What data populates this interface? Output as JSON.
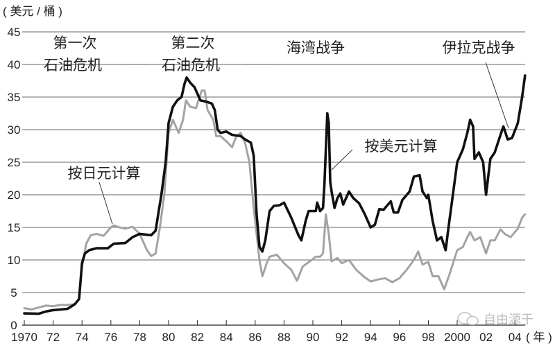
{
  "chart_data": {
    "type": "line",
    "ylabel": "( 美元 / 桶 )",
    "xlabel": "( 年 )",
    "ylim": [
      0,
      45
    ],
    "xlim": [
      1970,
      2004.8
    ],
    "yticks": [
      "0",
      "5",
      "10",
      "15",
      "20",
      "25",
      "30",
      "35",
      "40",
      "45"
    ],
    "xticks": [
      {
        "year": 1970,
        "label": "1970"
      },
      {
        "year": 1972,
        "label": "72"
      },
      {
        "year": 1974,
        "label": "74"
      },
      {
        "year": 1976,
        "label": "76"
      },
      {
        "year": 1978,
        "label": "78"
      },
      {
        "year": 1980,
        "label": "80"
      },
      {
        "year": 1982,
        "label": "82"
      },
      {
        "year": 1984,
        "label": "84"
      },
      {
        "year": 1986,
        "label": "86"
      },
      {
        "year": 1988,
        "label": "88"
      },
      {
        "year": 1990,
        "label": "90"
      },
      {
        "year": 1992,
        "label": "92"
      },
      {
        "year": 1994,
        "label": "94"
      },
      {
        "year": 1996,
        "label": "96"
      },
      {
        "year": 1998,
        "label": "98"
      },
      {
        "year": 2000,
        "label": "2000"
      },
      {
        "year": 2002,
        "label": "02"
      },
      {
        "year": 2004,
        "label": "04"
      }
    ],
    "grid": true,
    "series": [
      {
        "name": "按美元计算",
        "color": "#111111",
        "points": [
          [
            1970,
            1.8
          ],
          [
            1971,
            1.75
          ],
          [
            1971.5,
            2.1
          ],
          [
            1972,
            2.3
          ],
          [
            1973,
            2.5
          ],
          [
            1973.5,
            3.2
          ],
          [
            1973.8,
            4
          ],
          [
            1974,
            9.5
          ],
          [
            1974.2,
            11
          ],
          [
            1974.5,
            11.5
          ],
          [
            1975,
            11.8
          ],
          [
            1975.8,
            11.8
          ],
          [
            1976.2,
            12.5
          ],
          [
            1977,
            12.6
          ],
          [
            1977.5,
            13.5
          ],
          [
            1978,
            14
          ],
          [
            1978.8,
            13.8
          ],
          [
            1979.1,
            14.5
          ],
          [
            1979.5,
            20
          ],
          [
            1979.8,
            25
          ],
          [
            1980,
            31
          ],
          [
            1980.3,
            33.5
          ],
          [
            1980.6,
            34.5
          ],
          [
            1980.9,
            35
          ],
          [
            1981.1,
            37
          ],
          [
            1981.25,
            38
          ],
          [
            1981.5,
            37.2
          ],
          [
            1981.8,
            36.5
          ],
          [
            1982.2,
            34.5
          ],
          [
            1982.6,
            34.3
          ],
          [
            1983,
            34
          ],
          [
            1983.2,
            33
          ],
          [
            1983.4,
            30
          ],
          [
            1983.6,
            29.5
          ],
          [
            1984,
            29.7
          ],
          [
            1984.4,
            29.2
          ],
          [
            1985,
            29
          ],
          [
            1985.3,
            28.5
          ],
          [
            1985.7,
            28
          ],
          [
            1985.9,
            26
          ],
          [
            1986.1,
            17
          ],
          [
            1986.3,
            12
          ],
          [
            1986.5,
            11.3
          ],
          [
            1986.7,
            13
          ],
          [
            1987,
            17.5
          ],
          [
            1987.3,
            18.3
          ],
          [
            1987.7,
            18.4
          ],
          [
            1988,
            18.8
          ],
          [
            1988.5,
            16.5
          ],
          [
            1989,
            13.8
          ],
          [
            1989.2,
            13
          ],
          [
            1989.5,
            16
          ],
          [
            1989.7,
            17.5
          ],
          [
            1990.2,
            17.5
          ],
          [
            1990.3,
            18.8
          ],
          [
            1990.5,
            17.5
          ],
          [
            1990.7,
            18
          ],
          [
            1990.8,
            21.5
          ],
          [
            1990.9,
            27
          ],
          [
            1991,
            32.5
          ],
          [
            1991.1,
            31
          ],
          [
            1991.2,
            22
          ],
          [
            1991.3,
            20.5
          ],
          [
            1991.5,
            18
          ],
          [
            1991.7,
            19.5
          ],
          [
            1991.9,
            20.2
          ],
          [
            1992.1,
            18.5
          ],
          [
            1992.5,
            20.5
          ],
          [
            1992.8,
            19.5
          ],
          [
            1993.2,
            18.7
          ],
          [
            1993.6,
            17
          ],
          [
            1994,
            15
          ],
          [
            1994.3,
            15.4
          ],
          [
            1994.6,
            17.8
          ],
          [
            1994.9,
            17.7
          ],
          [
            1995.2,
            18.5
          ],
          [
            1995.4,
            19
          ],
          [
            1995.6,
            17.3
          ],
          [
            1995.9,
            17.3
          ],
          [
            1996.2,
            19.2
          ],
          [
            1996.7,
            20.5
          ],
          [
            1997,
            22.8
          ],
          [
            1997.4,
            23
          ],
          [
            1997.6,
            20.5
          ],
          [
            1997.9,
            19.5
          ],
          [
            1998,
            20
          ],
          [
            1998.3,
            16
          ],
          [
            1998.6,
            13
          ],
          [
            1998.9,
            13.5
          ],
          [
            1999.2,
            11.5
          ],
          [
            1999.4,
            15
          ],
          [
            1999.7,
            20
          ],
          [
            2000,
            25
          ],
          [
            2000.4,
            27
          ],
          [
            2000.7,
            29.5
          ],
          [
            2000.9,
            31.5
          ],
          [
            2001.1,
            30.5
          ],
          [
            2001.2,
            25.5
          ],
          [
            2001.5,
            26.5
          ],
          [
            2001.8,
            25
          ],
          [
            2002,
            20
          ],
          [
            2002.3,
            25.5
          ],
          [
            2002.6,
            26.5
          ],
          [
            2002.9,
            28.5
          ],
          [
            2003.2,
            30.5
          ],
          [
            2003.5,
            28.5
          ],
          [
            2003.8,
            28.7
          ],
          [
            2004.2,
            31
          ],
          [
            2004.5,
            35
          ],
          [
            2004.7,
            38.3
          ]
        ]
      },
      {
        "name": "按日元计算",
        "color": "#a3a3a3",
        "points": [
          [
            1970,
            2.6
          ],
          [
            1970.5,
            2.4
          ],
          [
            1971,
            2.7
          ],
          [
            1971.5,
            3
          ],
          [
            1972,
            2.9
          ],
          [
            1972.5,
            3.1
          ],
          [
            1973,
            3.1
          ],
          [
            1973.5,
            3.2
          ],
          [
            1973.8,
            4
          ],
          [
            1974,
            9
          ],
          [
            1974.3,
            12.5
          ],
          [
            1974.6,
            13.8
          ],
          [
            1975,
            14
          ],
          [
            1975.5,
            13.7
          ],
          [
            1976,
            15
          ],
          [
            1976.2,
            15.3
          ],
          [
            1976.6,
            15
          ],
          [
            1977,
            14.8
          ],
          [
            1977.5,
            15.1
          ],
          [
            1978,
            14
          ],
          [
            1978.5,
            11.5
          ],
          [
            1978.8,
            10.6
          ],
          [
            1979.1,
            11
          ],
          [
            1979.4,
            15
          ],
          [
            1979.7,
            20
          ],
          [
            1980,
            29.5
          ],
          [
            1980.3,
            31.5
          ],
          [
            1980.7,
            29.5
          ],
          [
            1981,
            31.5
          ],
          [
            1981.2,
            34.5
          ],
          [
            1981.5,
            33.5
          ],
          [
            1981.9,
            33.3
          ],
          [
            1982.3,
            36
          ],
          [
            1982.5,
            36
          ],
          [
            1982.7,
            33
          ],
          [
            1983.1,
            31.5
          ],
          [
            1983.3,
            29
          ],
          [
            1983.6,
            29
          ],
          [
            1984.1,
            28
          ],
          [
            1984.4,
            27.3
          ],
          [
            1984.7,
            29
          ],
          [
            1985,
            29.5
          ],
          [
            1985.3,
            28
          ],
          [
            1985.6,
            25
          ],
          [
            1985.9,
            18
          ],
          [
            1986.3,
            10
          ],
          [
            1986.5,
            7.5
          ],
          [
            1986.8,
            9.5
          ],
          [
            1987,
            10.5
          ],
          [
            1987.5,
            10.8
          ],
          [
            1988,
            9.5
          ],
          [
            1988.5,
            8.5
          ],
          [
            1988.9,
            6.8
          ],
          [
            1989.3,
            9
          ],
          [
            1989.8,
            9.8
          ],
          [
            1990.2,
            10.5
          ],
          [
            1990.5,
            10.5
          ],
          [
            1990.7,
            11
          ],
          [
            1990.9,
            17
          ],
          [
            1991.1,
            14
          ],
          [
            1991.3,
            9.8
          ],
          [
            1991.7,
            10.3
          ],
          [
            1992,
            9.5
          ],
          [
            1992.5,
            10
          ],
          [
            1993,
            8.5
          ],
          [
            1993.5,
            7.5
          ],
          [
            1994,
            6.7
          ],
          [
            1994.5,
            7
          ],
          [
            1995,
            7.2
          ],
          [
            1995.5,
            6.6
          ],
          [
            1996,
            7.2
          ],
          [
            1996.5,
            8.5
          ],
          [
            1997,
            10
          ],
          [
            1997.3,
            11.3
          ],
          [
            1997.6,
            9.3
          ],
          [
            1998,
            9.7
          ],
          [
            1998.3,
            7.5
          ],
          [
            1998.7,
            7.5
          ],
          [
            1999.1,
            5.5
          ],
          [
            1999.5,
            8
          ],
          [
            2000,
            11.5
          ],
          [
            2000.4,
            12
          ],
          [
            2000.7,
            13.5
          ],
          [
            2000.9,
            14.3
          ],
          [
            2001.2,
            13
          ],
          [
            2001.6,
            13.5
          ],
          [
            2002,
            11
          ],
          [
            2002.3,
            13
          ],
          [
            2002.6,
            13
          ],
          [
            2003,
            14.7
          ],
          [
            2003.3,
            14
          ],
          [
            2003.7,
            13.5
          ],
          [
            2004.2,
            14.8
          ],
          [
            2004.5,
            16.5
          ],
          [
            2004.7,
            17
          ]
        ]
      }
    ],
    "annotations": {
      "first_crisis": [
        "第一次",
        "石油危机"
      ],
      "second_crisis": [
        "第二次",
        "石油危机"
      ],
      "gulf_war": "海湾战争",
      "iraq_war": "伊拉克战争",
      "usd_label": "按美元计算",
      "jpy_label": "按日元计算"
    }
  },
  "watermark": "自由源于"
}
